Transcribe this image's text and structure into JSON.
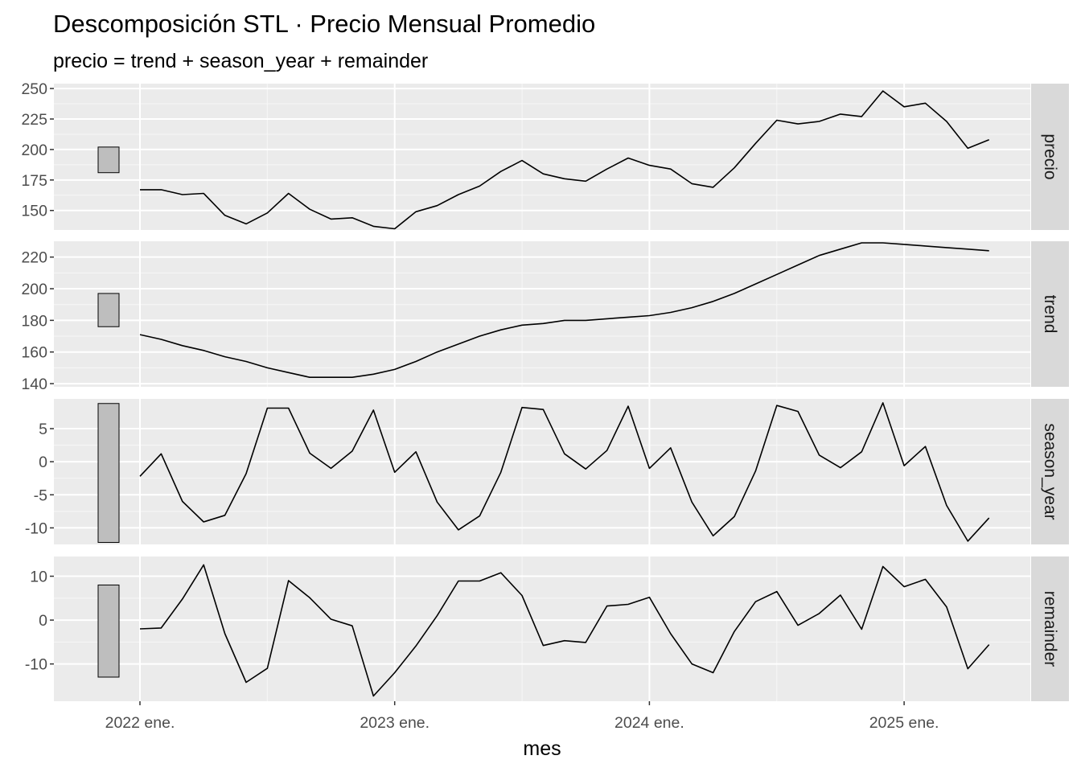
{
  "chart_data": {
    "type": "line",
    "title": "Descomposición STL · Precio Mensual Promedio",
    "subtitle": "precio = trend + season_year + remainder",
    "xlabel": "mes",
    "x_ticks": [
      "2022 ene.",
      "2023 ene.",
      "2024 ene.",
      "2025 ene."
    ],
    "x_start": "2022-01",
    "grid": true,
    "panels": [
      {
        "name": "precio",
        "ylim": [
          134,
          254
        ],
        "y_ticks": [
          150,
          175,
          200,
          225,
          250
        ],
        "scale_bar": [
          181,
          202
        ],
        "values": [
          167,
          167,
          163,
          164,
          146,
          139,
          148,
          164,
          151,
          143,
          144,
          137,
          135,
          149,
          154,
          163,
          170,
          182,
          191,
          180,
          176,
          174,
          184,
          193,
          187,
          184,
          172,
          169,
          185,
          205,
          224,
          221,
          223,
          229,
          227,
          248,
          235,
          238,
          223,
          201,
          208
        ]
      },
      {
        "name": "trend",
        "ylim": [
          138,
          230
        ],
        "y_ticks": [
          140,
          160,
          180,
          200,
          220
        ],
        "scale_bar": [
          176,
          197
        ],
        "values": [
          171,
          168,
          164,
          161,
          157,
          154,
          150,
          147,
          144,
          144,
          144,
          146,
          149,
          154,
          160,
          165,
          170,
          174,
          177,
          178,
          180,
          180,
          181,
          182,
          183,
          185,
          188,
          192,
          197,
          203,
          209,
          215,
          221,
          225,
          229,
          229,
          228,
          227,
          226,
          225,
          224
        ]
      },
      {
        "name": "season_year",
        "ylim": [
          -12.5,
          9.5
        ],
        "y_ticks": [
          -10,
          -5,
          0,
          5
        ],
        "scale_bar": [
          -12.2,
          8.8
        ],
        "values": [
          -2.2,
          1.2,
          -6.0,
          -9.1,
          -8.1,
          -1.8,
          8.1,
          8.1,
          1.3,
          -1.0,
          1.6,
          7.8,
          -1.6,
          1.5,
          -6.1,
          -10.3,
          -8.2,
          -1.6,
          8.2,
          7.9,
          1.2,
          -1.1,
          1.7,
          8.4,
          -1.0,
          2.1,
          -6.1,
          -11.2,
          -8.3,
          -1.4,
          8.5,
          7.6,
          1.0,
          -0.9,
          1.5,
          8.9,
          -0.6,
          2.3,
          -6.6,
          -12.0,
          -8.5
        ]
      },
      {
        "name": "remainder",
        "ylim": [
          -18.5,
          14.5
        ],
        "y_ticks": [
          -10,
          0,
          10
        ],
        "scale_bar": [
          -13,
          8
        ],
        "values": [
          -2.0,
          -1.8,
          4.8,
          12.6,
          -3.1,
          -14.2,
          -11.0,
          9.0,
          5.1,
          0.2,
          -1.3,
          -17.3,
          -12.0,
          -5.9,
          1.0,
          8.9,
          8.9,
          10.8,
          5.6,
          -5.8,
          -4.7,
          -5.1,
          3.2,
          3.6,
          5.2,
          -3.1,
          -10.0,
          -12.0,
          -2.6,
          4.2,
          6.5,
          -1.2,
          1.5,
          5.7,
          -2.1,
          12.2,
          7.6,
          9.3,
          3.0,
          -11.1,
          -5.6
        ]
      }
    ]
  }
}
